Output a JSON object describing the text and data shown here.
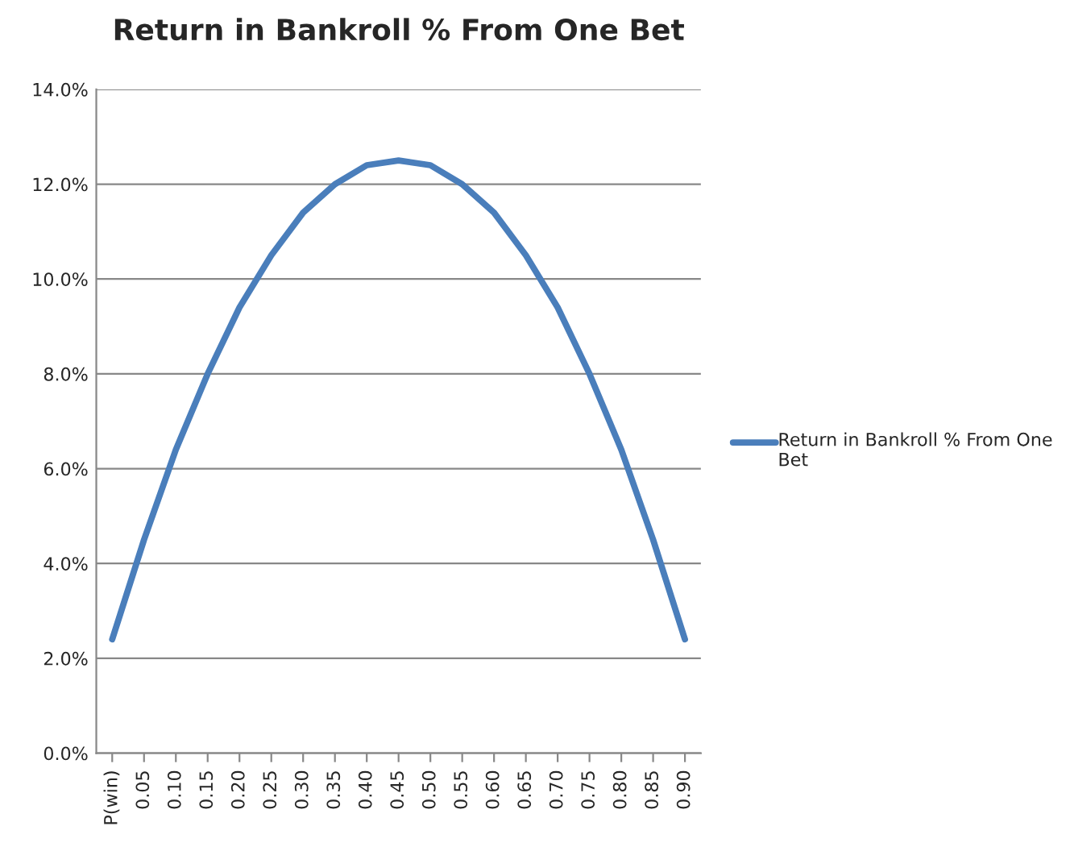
{
  "chart_data": {
    "type": "line",
    "title": "Return in Bankroll % From One Bet",
    "categories": [
      "P(win)",
      "0.05",
      "0.10",
      "0.15",
      "0.20",
      "0.25",
      "0.30",
      "0.35",
      "0.40",
      "0.45",
      "0.50",
      "0.55",
      "0.60",
      "0.65",
      "0.70",
      "0.75",
      "0.80",
      "0.85",
      "0.90"
    ],
    "series": [
      {
        "name": "Return in Bankroll % From One Bet",
        "color": "#4a7ebb",
        "values": [
          2.4,
          4.5,
          6.4,
          8.0,
          9.4,
          10.5,
          11.4,
          12.0,
          12.4,
          12.5,
          12.4,
          12.0,
          11.4,
          10.5,
          9.4,
          8.0,
          6.4,
          4.5,
          2.4
        ]
      }
    ],
    "ylim": [
      0,
      14
    ],
    "yticks": [
      {
        "value": 0,
        "label": "0.0%"
      },
      {
        "value": 2,
        "label": "2.0%"
      },
      {
        "value": 4,
        "label": "4.0%"
      },
      {
        "value": 6,
        "label": "6.0%"
      },
      {
        "value": 8,
        "label": "8.0%"
      },
      {
        "value": 10,
        "label": "10.0%"
      },
      {
        "value": 12,
        "label": "12.0%"
      },
      {
        "value": 14,
        "label": "14.0%"
      }
    ],
    "grid": "y",
    "legend": "right",
    "marker": "none",
    "line_style": "solid"
  }
}
